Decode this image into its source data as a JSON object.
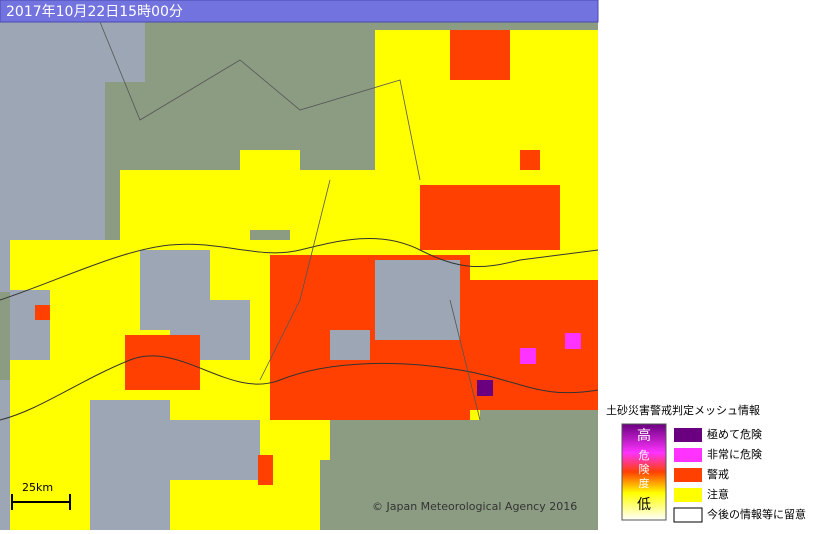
{
  "header": {
    "title": "2017年10月22日15時00分"
  },
  "map": {
    "scale": "25km",
    "copyright": "© Japan Meteorological Agency 2016"
  },
  "legend": {
    "title": "土砂災害警戒判定メッシュ情報",
    "bar": [
      "高",
      "危",
      "険",
      "度",
      "低"
    ],
    "items": [
      "極めて危険",
      "非常に危険",
      "警戒",
      "注意",
      "今後の情報等に留意"
    ]
  }
}
